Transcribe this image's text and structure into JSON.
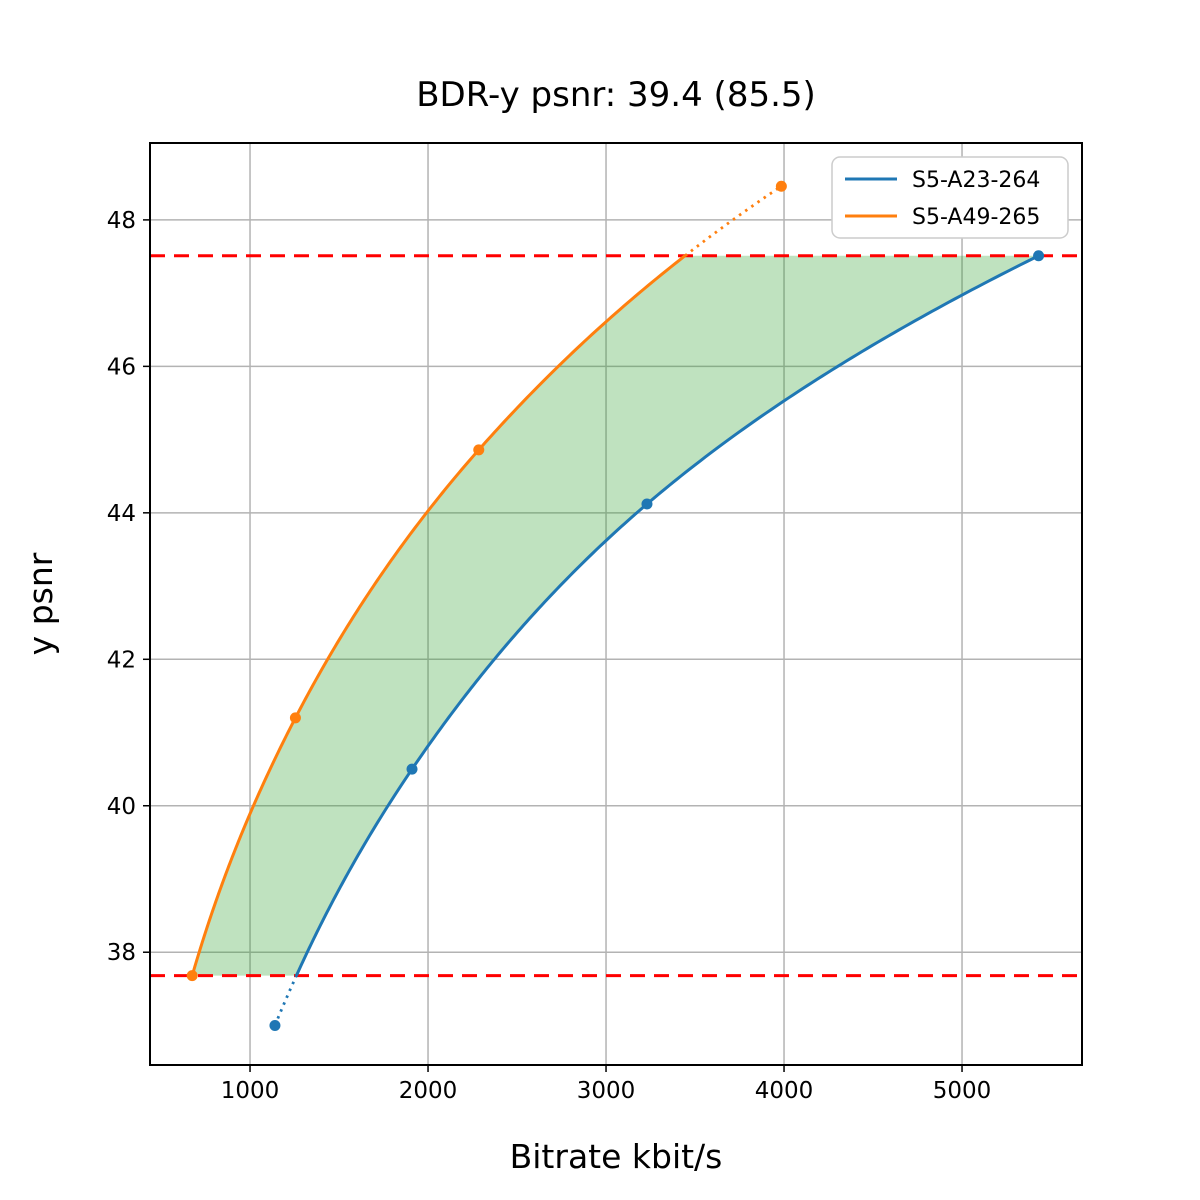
{
  "figure": {
    "background": "#ffffff",
    "spine_color": "#000000"
  },
  "chart_data": {
    "type": "line",
    "title": "BDR-y psnr: 39.4 (85.5)",
    "xlabel": "Bitrate kbit/s",
    "ylabel": "y psnr",
    "xlim": [
      438,
      5674
    ],
    "ylim": [
      36.46,
      49.05
    ],
    "x_ticks": [
      1000,
      2000,
      3000,
      4000,
      5000
    ],
    "y_ticks": [
      38,
      40,
      42,
      44,
      46,
      48
    ],
    "grid": true,
    "grid_color": "#b3b3b3",
    "interpolation": "pchip-log-x",
    "series": [
      {
        "name": "S5-A23-264",
        "color": "#1f77b4",
        "points": [
          [
            1140,
            37.0
          ],
          [
            1910,
            40.5
          ],
          [
            3230,
            44.12
          ],
          [
            5430,
            47.51
          ]
        ]
      },
      {
        "name": "S5-A49-265",
        "color": "#ff7f0e",
        "points": [
          [
            675,
            37.68
          ],
          [
            1255,
            41.2
          ],
          [
            2285,
            44.86
          ],
          [
            3985,
            48.46
          ]
        ]
      }
    ],
    "overlap_band": {
      "low": 37.68,
      "high": 47.51,
      "line_color": "#ff0000",
      "line_style": "dashed",
      "note": "curves drawn dotted outside this psnr band"
    },
    "shaded_region": {
      "between": [
        "S5-A49-265",
        "S5-A23-264"
      ],
      "fill_color": "#2ca02c",
      "fill_alpha": 0.3
    },
    "legend": {
      "position": "upper right",
      "entries": [
        "S5-A23-264",
        "S5-A49-265"
      ]
    }
  }
}
